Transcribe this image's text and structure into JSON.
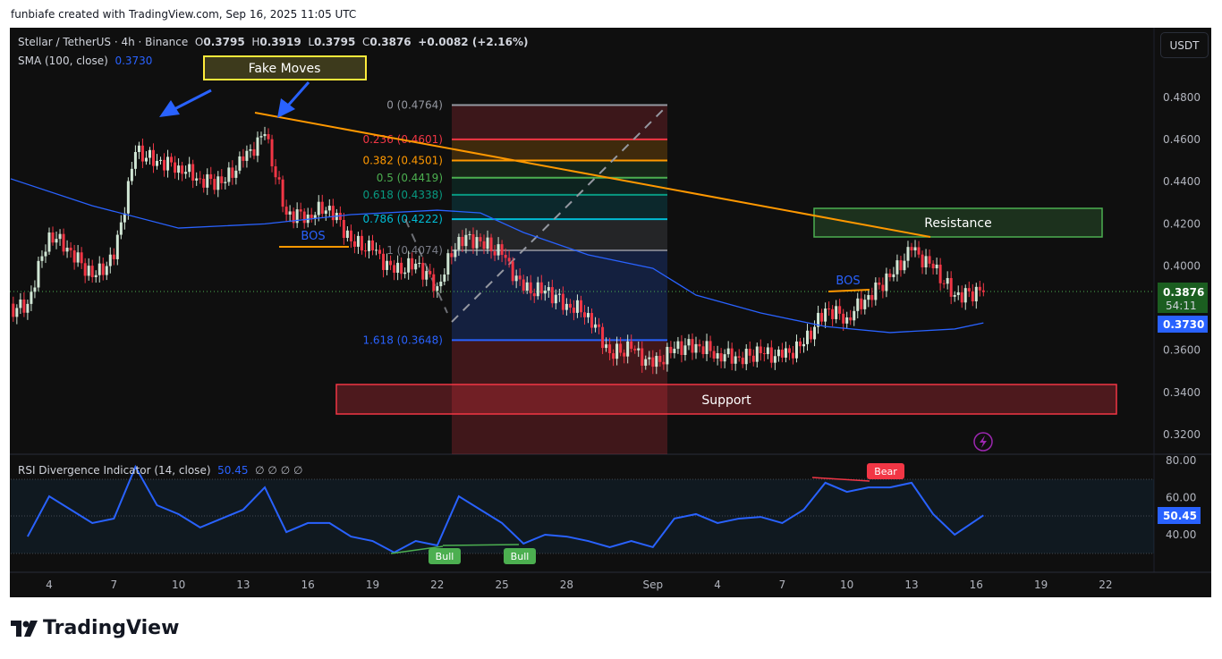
{
  "credit": "funbiafe created with TradingView.com, Sep 16, 2025 11:05 UTC",
  "legend": {
    "symbol": "Stellar / TetherUS · 4h · Binance",
    "open_label": "O",
    "open": "0.3795",
    "high_label": "H",
    "high": "0.3919",
    "low_label": "L",
    "low": "0.3795",
    "close_label": "C",
    "close": "0.3876",
    "change": "+0.0082 (+2.16%)",
    "sma_label": "SMA (100, close)",
    "sma_value": "0.3730",
    "rsi_label": "RSI Divergence Indicator (14, close)",
    "rsi_value": "50.45",
    "rsi_extra": "∅ ∅ ∅ ∅"
  },
  "currency_button": "USDT",
  "price_axis": [
    "0.4800",
    "0.4600",
    "0.4400",
    "0.4200",
    "0.4000",
    "0.3600",
    "0.3400",
    "0.3200"
  ],
  "rsi_axis": [
    "80.00",
    "60.00",
    "40.00"
  ],
  "badges": {
    "last_price": "0.3876",
    "countdown": "54:11",
    "sma": "0.3730",
    "rsi": "50.45"
  },
  "time_axis": [
    "4",
    "7",
    "10",
    "13",
    "16",
    "19",
    "22",
    "25",
    "28",
    "Sep",
    "4",
    "7",
    "10",
    "13",
    "16",
    "19",
    "22"
  ],
  "annotations": {
    "fake_moves": "Fake Moves",
    "bos_1": "BOS",
    "bos_2": "BOS",
    "resistance": "Resistance",
    "support": "Support",
    "bull_1": "Bull",
    "bull_2": "Bull",
    "bear": "Bear"
  },
  "fib_levels": [
    {
      "label": "0 (0.4764)",
      "level": 0,
      "price": 0.4764,
      "color": "#9598a1"
    },
    {
      "label": "0.236 (0.4601)",
      "level": 0.236,
      "price": 0.4601,
      "color": "#f23645"
    },
    {
      "label": "0.382 (0.4501)",
      "level": 0.382,
      "price": 0.4501,
      "color": "#ff9800"
    },
    {
      "label": "0.5 (0.4419)",
      "level": 0.5,
      "price": 0.4419,
      "color": "#4caf50"
    },
    {
      "label": "0.618 (0.4338)",
      "level": 0.618,
      "price": 0.4338,
      "color": "#089981"
    },
    {
      "label": "0.786 (0.4222)",
      "level": 0.786,
      "price": 0.4222,
      "color": "#00bcd4"
    },
    {
      "label": "1 (0.4074)",
      "level": 1,
      "price": 0.4074,
      "color": "#787b86"
    },
    {
      "label": "1.618 (0.3648)",
      "level": 1.618,
      "price": 0.3648,
      "color": "#2962ff"
    }
  ],
  "logo": "TradingView",
  "colors": {
    "up": "#d1e7d5",
    "down": "#f23645",
    "sma": "#2962ff",
    "rsi": "#2962ff",
    "trendline": "#ff9800",
    "resistance": "#4caf50",
    "support": "#f23645",
    "last_price": "#1b5e20"
  },
  "chart_data": {
    "type": "candlestick",
    "title": "Stellar / TetherUS · 4h · Binance",
    "y_range": [
      0.31,
      0.49
    ],
    "x_range": [
      "Aug 2",
      "Sep 24"
    ],
    "grid": false,
    "daily_closes": [
      {
        "date": "Aug 3",
        "close": 0.382
      },
      {
        "date": "Aug 4",
        "close": 0.4159
      },
      {
        "date": "Aug 5",
        "close": 0.4074
      },
      {
        "date": "Aug 6",
        "close": 0.3947
      },
      {
        "date": "Aug 7",
        "close": 0.4032
      },
      {
        "date": "Aug 8",
        "close": 0.4541
      },
      {
        "date": "Aug 9",
        "close": 0.4499
      },
      {
        "date": "Aug 10",
        "close": 0.4477
      },
      {
        "date": "Aug 11",
        "close": 0.4414
      },
      {
        "date": "Aug 12",
        "close": 0.4393
      },
      {
        "date": "Aug 13",
        "close": 0.4499
      },
      {
        "date": "Aug 14",
        "close": 0.4626
      },
      {
        "date": "Aug 15",
        "close": 0.4244
      },
      {
        "date": "Aug 16",
        "close": 0.4244
      },
      {
        "date": "Aug 17",
        "close": 0.4286
      },
      {
        "date": "Aug 18",
        "close": 0.4117
      },
      {
        "date": "Aug 19",
        "close": 0.4074
      },
      {
        "date": "Aug 20",
        "close": 0.3968
      },
      {
        "date": "Aug 21",
        "close": 0.4011
      },
      {
        "date": "Aug 22",
        "close": 0.3904
      },
      {
        "date": "Aug 23",
        "close": 0.4138
      },
      {
        "date": "Aug 24",
        "close": 0.4117
      },
      {
        "date": "Aug 25",
        "close": 0.4053
      },
      {
        "date": "Aug 26",
        "close": 0.3883
      },
      {
        "date": "Aug 27",
        "close": 0.3883
      },
      {
        "date": "Aug 28",
        "close": 0.382
      },
      {
        "date": "Aug 29",
        "close": 0.3777
      },
      {
        "date": "Aug 30",
        "close": 0.3586
      },
      {
        "date": "Aug 31",
        "close": 0.3607
      },
      {
        "date": "Sep 1",
        "close": 0.3522
      },
      {
        "date": "Sep 2",
        "close": 0.3607
      },
      {
        "date": "Sep 3",
        "close": 0.3629
      },
      {
        "date": "Sep 4",
        "close": 0.3586
      },
      {
        "date": "Sep 5",
        "close": 0.3565
      },
      {
        "date": "Sep 6",
        "close": 0.3586
      },
      {
        "date": "Sep 7",
        "close": 0.3565
      },
      {
        "date": "Sep 8",
        "close": 0.3629
      },
      {
        "date": "Sep 9",
        "close": 0.3798
      },
      {
        "date": "Sep 10",
        "close": 0.3756
      },
      {
        "date": "Sep 11",
        "close": 0.3862
      },
      {
        "date": "Sep 12",
        "close": 0.3947
      },
      {
        "date": "Sep 13",
        "close": 0.4074
      },
      {
        "date": "Sep 14",
        "close": 0.3989
      },
      {
        "date": "Sep 15",
        "close": 0.3862
      },
      {
        "date": "Sep 16 08:00",
        "close": 0.3876
      }
    ],
    "sma_100": [
      {
        "date": "Aug 2",
        "value": 0.4414
      },
      {
        "date": "Aug 6",
        "value": 0.4286
      },
      {
        "date": "Aug 10",
        "value": 0.418
      },
      {
        "date": "Aug 14",
        "value": 0.42
      },
      {
        "date": "Aug 18",
        "value": 0.4244
      },
      {
        "date": "Aug 22",
        "value": 0.4265
      },
      {
        "date": "Aug 24",
        "value": 0.4252
      },
      {
        "date": "Aug 26",
        "value": 0.4159
      },
      {
        "date": "Aug 29",
        "value": 0.4053
      },
      {
        "date": "Sep 1",
        "value": 0.3989
      },
      {
        "date": "Sep 3",
        "value": 0.3862
      },
      {
        "date": "Sep 6",
        "value": 0.3777
      },
      {
        "date": "Sep 9",
        "value": 0.3713
      },
      {
        "date": "Sep 12",
        "value": 0.3684
      },
      {
        "date": "Sep 15",
        "value": 0.3701
      },
      {
        "date": "Sep 16 08:00",
        "value": 0.373
      }
    ],
    "rsi": {
      "name": "RSI Divergence Indicator (14, close)",
      "y_range": [
        20,
        90
      ],
      "band": [
        30,
        70
      ],
      "values": [
        {
          "date": "Aug 3",
          "value": 39
        },
        {
          "date": "Aug 4",
          "value": 60.7
        },
        {
          "date": "Aug 5",
          "value": 53.5
        },
        {
          "date": "Aug 6",
          "value": 46.3
        },
        {
          "date": "Aug 7",
          "value": 48.7
        },
        {
          "date": "Aug 8",
          "value": 76.6
        },
        {
          "date": "Aug 9",
          "value": 55.9
        },
        {
          "date": "Aug 10",
          "value": 51.1
        },
        {
          "date": "Aug 11",
          "value": 43.9
        },
        {
          "date": "Aug 12",
          "value": 48.7
        },
        {
          "date": "Aug 13",
          "value": 53.5
        },
        {
          "date": "Aug 14",
          "value": 65.5
        },
        {
          "date": "Aug 15",
          "value": 41.4
        },
        {
          "date": "Aug 16",
          "value": 46.3
        },
        {
          "date": "Aug 17",
          "value": 46.3
        },
        {
          "date": "Aug 18",
          "value": 39
        },
        {
          "date": "Aug 19",
          "value": 36.6
        },
        {
          "date": "Aug 20",
          "value": 30.4
        },
        {
          "date": "Aug 21",
          "value": 36.6
        },
        {
          "date": "Aug 22",
          "value": 34.2
        },
        {
          "date": "Aug 23",
          "value": 60.7
        },
        {
          "date": "Aug 24",
          "value": 53.5
        },
        {
          "date": "Aug 25",
          "value": 46.3
        },
        {
          "date": "Aug 26",
          "value": 35.2
        },
        {
          "date": "Aug 27",
          "value": 40
        },
        {
          "date": "Aug 28",
          "value": 39
        },
        {
          "date": "Aug 29",
          "value": 36.6
        },
        {
          "date": "Aug 30",
          "value": 33.3
        },
        {
          "date": "Aug 31",
          "value": 36.6
        },
        {
          "date": "Sep 1",
          "value": 33.3
        },
        {
          "date": "Sep 2",
          "value": 48.7
        },
        {
          "date": "Sep 3",
          "value": 51.1
        },
        {
          "date": "Sep 4",
          "value": 46.3
        },
        {
          "date": "Sep 5",
          "value": 48.7
        },
        {
          "date": "Sep 6",
          "value": 49.6
        },
        {
          "date": "Sep 7",
          "value": 46.3
        },
        {
          "date": "Sep 8",
          "value": 53.5
        },
        {
          "date": "Sep 9",
          "value": 68
        },
        {
          "date": "Sep 10",
          "value": 63.1
        },
        {
          "date": "Sep 11",
          "value": 65.5
        },
        {
          "date": "Sep 12",
          "value": 65.5
        },
        {
          "date": "Sep 13",
          "value": 68
        },
        {
          "date": "Sep 14",
          "value": 51.1
        },
        {
          "date": "Sep 15",
          "value": 40
        },
        {
          "date": "Sep 16 08:00",
          "value": 50.45
        }
      ]
    }
  }
}
